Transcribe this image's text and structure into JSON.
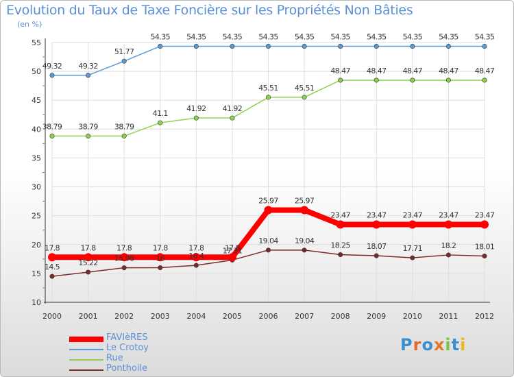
{
  "title": "Evolution du Taux de Taxe Foncière sur les Propriétés Non Bâties",
  "subtitle": "(en %)",
  "logo": {
    "text": "Proxiti",
    "colors": [
      "#3a8fd0",
      "#e06b2a",
      "#3a8fd0",
      "#e07a2a",
      "#7cc24a",
      "#3a8fd0",
      "#f2b51d"
    ]
  },
  "chart_data": {
    "type": "line",
    "title": "Evolution du Taux de Taxe Foncière sur les Propriétés Non Bâties",
    "ylabel": "(en %)",
    "xlabel": "",
    "x": [
      "2000",
      "2001",
      "2002",
      "2003",
      "2004",
      "2005",
      "2006",
      "2007",
      "2008",
      "2009",
      "2010",
      "2011",
      "2012"
    ],
    "ylim": [
      10,
      55
    ],
    "yticks": [
      "10",
      "15",
      "20",
      "25",
      "30",
      "35",
      "40",
      "45",
      "50",
      "55"
    ],
    "grid": true,
    "legend": "bottom-left",
    "series": [
      {
        "name": "FAVIèRES",
        "color": "#ff0000",
        "values": [
          17.8,
          17.8,
          17.8,
          17.8,
          17.8,
          17.8,
          25.97,
          25.97,
          23.47,
          23.47,
          23.47,
          23.47,
          23.47
        ],
        "labels": [
          "17.8",
          "17.8",
          "17.8",
          "17.8",
          "17.8",
          "17.8",
          "25.97",
          "25.97",
          "23.47",
          "23.47",
          "23.47",
          "23.47",
          "23.47"
        ]
      },
      {
        "name": "Le Crotoy",
        "color": "#5b9bd5",
        "values": [
          49.32,
          49.32,
          51.77,
          54.35,
          54.35,
          54.35,
          54.35,
          54.35,
          54.35,
          54.35,
          54.35,
          54.35,
          54.35
        ],
        "labels": [
          "49.32",
          "49.32",
          "51.77",
          "54.35",
          "54.35",
          "54.35",
          "54.35",
          "54.35",
          "54.35",
          "54.35",
          "54.35",
          "54.35",
          "54.35"
        ]
      },
      {
        "name": "Rue",
        "color": "#8fd14f",
        "values": [
          38.79,
          38.79,
          38.79,
          41.1,
          41.92,
          41.92,
          45.51,
          45.51,
          48.47,
          48.47,
          48.47,
          48.47,
          48.47
        ],
        "labels": [
          "38.79",
          "38.79",
          "38.79",
          "41.1",
          "41.92",
          "41.92",
          "45.51",
          "45.51",
          "48.47",
          "48.47",
          "48.47",
          "48.47",
          "48.47"
        ]
      },
      {
        "name": "Ponthoile",
        "color": "#7b2a2a",
        "values": [
          14.5,
          15.22,
          15.98,
          16,
          16.4,
          17.31,
          19.04,
          19.04,
          18.25,
          18.07,
          17.71,
          18.2,
          18.01
        ],
        "labels": [
          "14.5",
          "15.22",
          "15.98",
          "16",
          "16.4",
          "17.31",
          "19.04",
          "19.04",
          "18.25",
          "18.07",
          "17.71",
          "18.2",
          "18.01"
        ]
      }
    ]
  }
}
